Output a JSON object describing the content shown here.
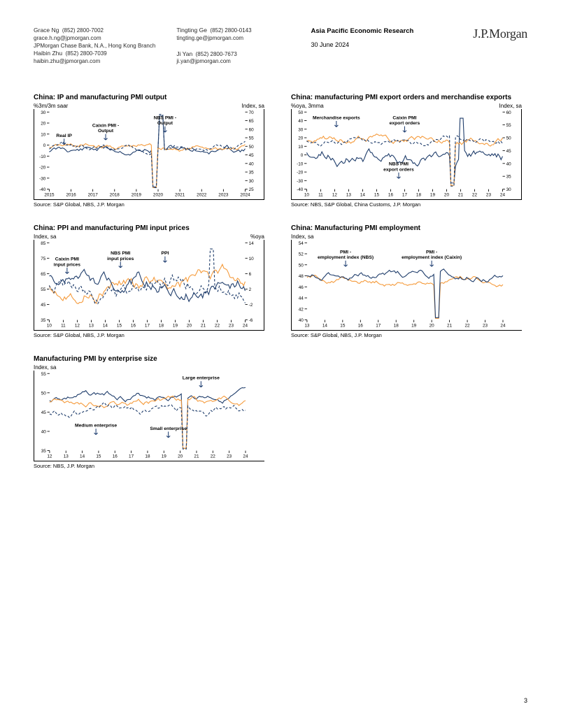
{
  "header": {
    "authors_col1": [
      {
        "name": "Grace Ng",
        "phone": "(852) 2800-7002",
        "email": "grace.h.ng@jpmorgan.com"
      },
      {
        "affil": "JPMorgan Chase Bank, N.A., Hong Kong Branch"
      },
      {
        "name": "Haibin Zhu",
        "phone": "(852) 2800-7039",
        "email": "haibin.zhu@jpmorgan.com"
      }
    ],
    "authors_col2": [
      {
        "name": "Tingting Ge",
        "phone": "(852) 2800-0143",
        "email": "tingting.ge@jpmorgan.com"
      },
      {
        "spacer": true
      },
      {
        "name": "Ji Yan",
        "phone": "(852) 2800-7673",
        "email": "ji.yan@jpmorgan.com"
      }
    ],
    "department": "Asia Pacific Economic Research",
    "date": "30 June 2024",
    "logo": "J.P.Morgan"
  },
  "colors": {
    "navy": "#1f3d6b",
    "orange": "#f59b3c",
    "navy_dash": "#1f3d6b",
    "text": "#000000",
    "bg": "#ffffff"
  },
  "chart1": {
    "title": "China: IP and manufacturing PMI output",
    "left_label": "%3m/3m saar",
    "right_label": "Index, sa",
    "x_ticks": [
      "2015",
      "2016",
      "2017",
      "2018",
      "2019",
      "2020",
      "2021",
      "2022",
      "2023",
      "2024"
    ],
    "y_left": {
      "min": -40,
      "max": 30,
      "ticks": [
        -40,
        -30,
        -20,
        -10,
        0,
        10,
        20,
        30
      ]
    },
    "y_right": {
      "min": 25,
      "max": 70,
      "ticks": [
        25,
        30,
        35,
        40,
        45,
        50,
        55,
        60,
        65,
        70
      ]
    },
    "series": [
      {
        "label": "Real IP",
        "label_x": 25,
        "label_y": 42,
        "color": "#1f3d6b",
        "dash": "none"
      },
      {
        "label": "Caixin PMI - Output",
        "label_x": 95,
        "label_y": 25,
        "color": "#f59b3c",
        "dash": "none"
      },
      {
        "label": "NBS PMI - Output",
        "label_x": 195,
        "label_y": 12,
        "color": "#1f3d6b",
        "dash": "4,3"
      }
    ],
    "source": "Source: S&P Global, NBS, J.P. Morgan"
  },
  "chart2": {
    "title": "China: manufacturing PMI export orders and merchandise exports",
    "left_label": "%oya, 3mma",
    "right_label": "Index, sa",
    "x_ticks": [
      "10",
      "11",
      "12",
      "13",
      "14",
      "15",
      "16",
      "17",
      "18",
      "19",
      "20",
      "21",
      "22",
      "23",
      "24"
    ],
    "y_left": {
      "min": -40,
      "max": 50,
      "ticks": [
        -40,
        -30,
        -20,
        -10,
        0,
        10,
        20,
        30,
        40,
        50
      ]
    },
    "y_right": {
      "min": 30,
      "max": 60,
      "ticks": [
        30,
        35,
        40,
        45,
        50,
        55,
        60
      ]
    },
    "series": [
      {
        "label": "Merchandise exports",
        "label_x": 50,
        "label_y": 12,
        "color": "#1f3d6b",
        "dash": "none"
      },
      {
        "label": "Caixin PMI export orders",
        "label_x": 165,
        "label_y": 12,
        "color": "#f59b3c",
        "dash": "none"
      },
      {
        "label": "NBS PMI export orders",
        "label_x": 155,
        "label_y": 90,
        "color": "#1f3d6b",
        "dash": "4,3"
      }
    ],
    "source": "Source: NBS, S&P Global, China Customs, J.P. Morgan"
  },
  "chart3": {
    "title": "China: PPI and manufacturing PMI input prices",
    "left_label": "Index, sa",
    "right_label": "%oya",
    "x_ticks": [
      "10",
      "11",
      "12",
      "13",
      "14",
      "15",
      "16",
      "17",
      "18",
      "19",
      "20",
      "21",
      "22",
      "23",
      "24"
    ],
    "y_left": {
      "min": 35,
      "max": 85,
      "ticks": [
        35,
        45,
        55,
        65,
        75,
        85
      ]
    },
    "y_right": {
      "min": -6,
      "max": 14,
      "ticks": [
        -6,
        -2,
        2,
        6,
        10,
        14
      ]
    },
    "series": [
      {
        "label": "Caixin PMI input prices",
        "label_x": 30,
        "label_y": 30,
        "color": "#f59b3c",
        "dash": "none"
      },
      {
        "label": "NBS PMI input prices",
        "label_x": 120,
        "label_y": 20,
        "color": "#1f3d6b",
        "dash": "none"
      },
      {
        "label": "PPI",
        "label_x": 195,
        "label_y": 20,
        "color": "#1f3d6b",
        "dash": "4,3"
      }
    ],
    "source": "Source: S&P Global, NBS, J.P. Morgan"
  },
  "chart4": {
    "title": "China: Manufacturing PMI employment",
    "left_label": "Index, sa",
    "right_label": "",
    "x_ticks": [
      "13",
      "14",
      "15",
      "16",
      "17",
      "18",
      "19",
      "20",
      "21",
      "22",
      "23",
      "24"
    ],
    "y_left": {
      "min": 40,
      "max": 54,
      "ticks": [
        40,
        42,
        44,
        46,
        48,
        50,
        52,
        54
      ]
    },
    "series": [
      {
        "label": "PMI - employment index (NBS)",
        "label_x": 65,
        "label_y": 18,
        "color": "#f59b3c",
        "dash": "none"
      },
      {
        "label": "PMI - employment index (Caixin)",
        "label_x": 210,
        "label_y": 18,
        "color": "#1f3d6b",
        "dash": "none"
      }
    ],
    "source": "Source: S&P Global, NBS, J.P. Morgan"
  },
  "chart5": {
    "title": "Manufacturing PMI by enterprise size",
    "left_label": "Index, sa",
    "right_label": "",
    "x_ticks": [
      "12",
      "13",
      "14",
      "15",
      "16",
      "17",
      "18",
      "19",
      "20",
      "21",
      "22",
      "23",
      "24"
    ],
    "y_left": {
      "min": 35,
      "max": 55,
      "ticks": [
        35,
        40,
        45,
        50,
        55
      ]
    },
    "series": [
      {
        "label": "Large enterprise",
        "label_x": 255,
        "label_y": 10,
        "color": "#1f3d6b",
        "dash": "none"
      },
      {
        "label": "Medium enterprise",
        "label_x": 78,
        "label_y": 90,
        "color": "#f59b3c",
        "dash": "none"
      },
      {
        "label": "Small enterprise",
        "label_x": 200,
        "label_y": 95,
        "color": "#1f3d6b",
        "dash": "4,3"
      }
    ],
    "source": "Source: NBS, J.P. Morgan"
  },
  "page_number": "3"
}
